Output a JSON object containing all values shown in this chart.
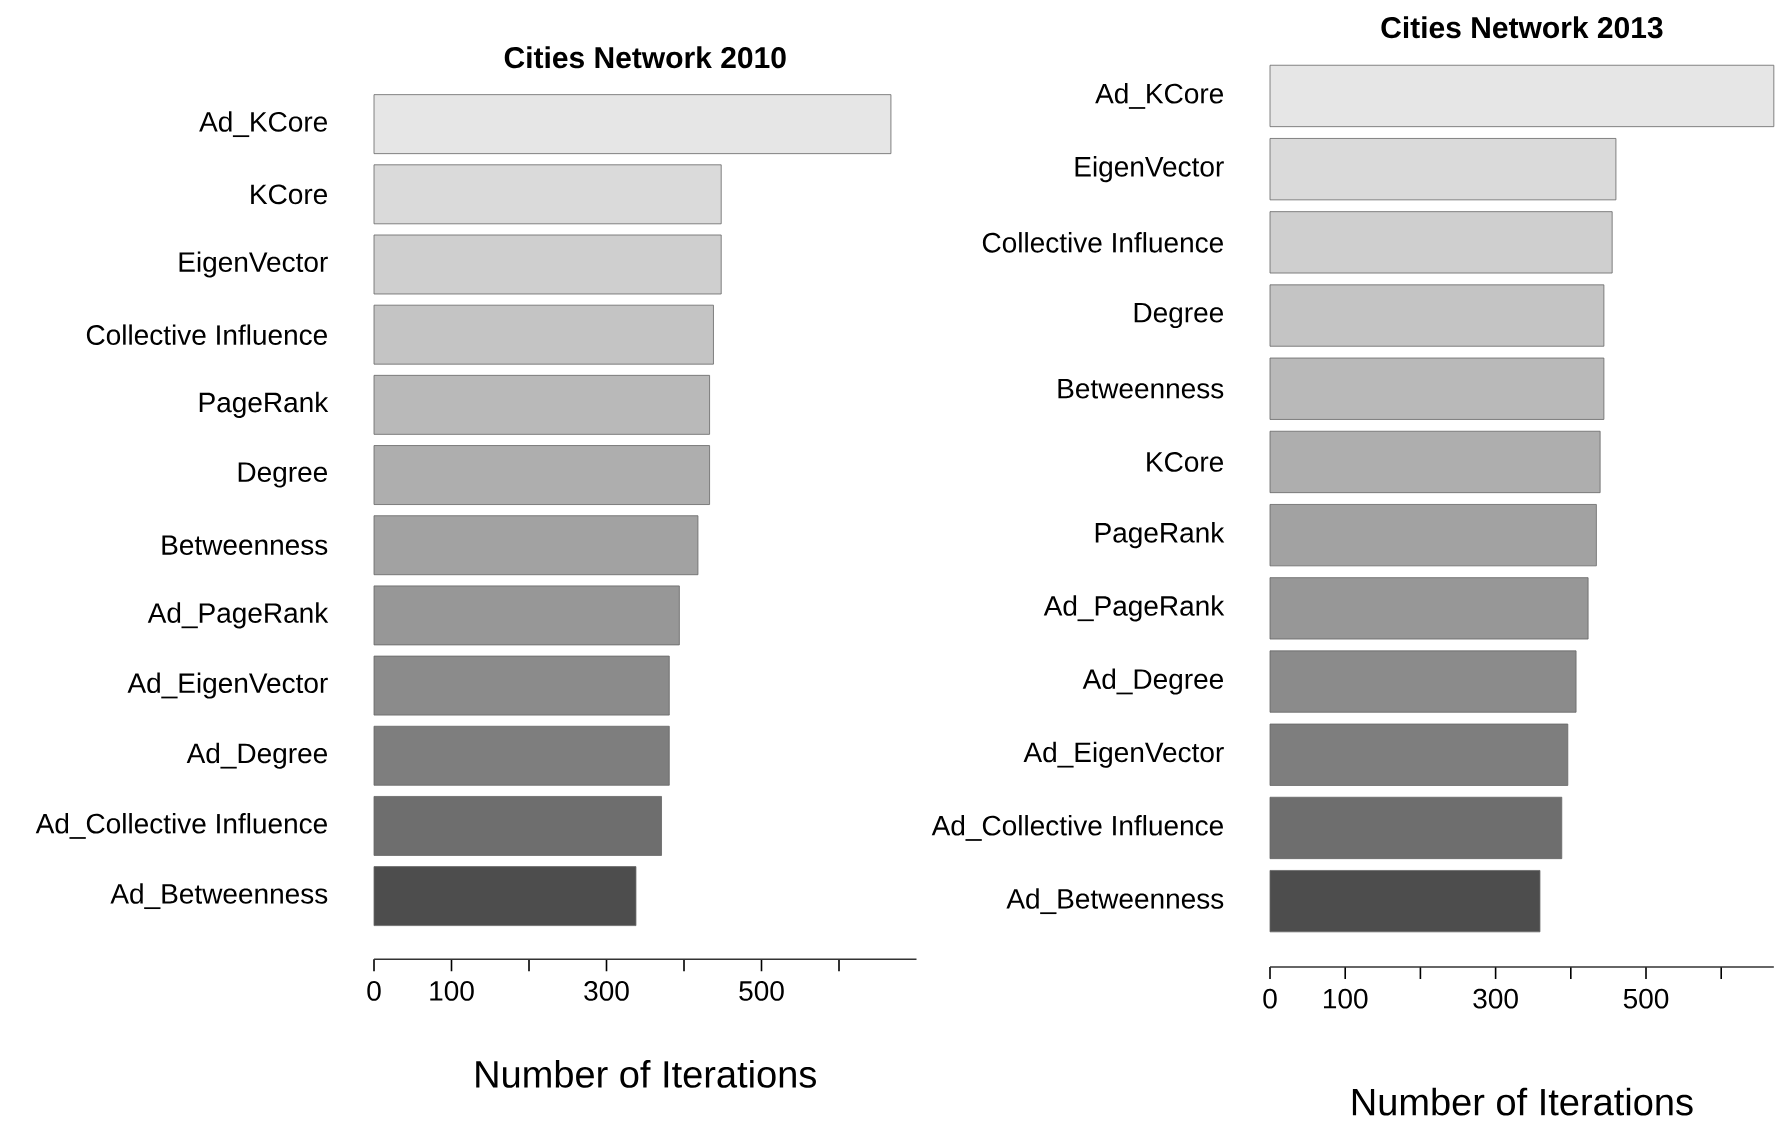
{
  "chart_data": [
    {
      "type": "bar",
      "orientation": "horizontal",
      "title": "Cities Network 2010",
      "xlabel": "Number of Iterations",
      "categories": [
        "Ad_KCore",
        "KCore",
        "EigenVector",
        "Collective Influence",
        "PageRank",
        "Degree",
        "Betweenness",
        "Ad_PageRank",
        "Ad_EigenVector",
        "Ad_Degree",
        "Ad_Collective Influence",
        "Ad_Betweenness"
      ],
      "values": [
        667,
        448,
        448,
        438,
        433,
        433,
        418,
        394,
        381,
        381,
        371,
        338
      ],
      "colors": [
        "#e6e6e6",
        "#dadada",
        "#cfcfcf",
        "#c4c4c4",
        "#b9b9b9",
        "#aeaeae",
        "#a2a2a2",
        "#979797",
        "#8b8b8b",
        "#7e7e7e",
        "#6e6e6e",
        "#4d4d4d"
      ],
      "xlim": [
        0,
        700
      ],
      "xticks": [
        0,
        100,
        {
          "value": 200,
          "label": null
        },
        300,
        {
          "value": 400,
          "label": null
        },
        500,
        {
          "value": 600,
          "label": null
        }
      ]
    },
    {
      "type": "bar",
      "orientation": "horizontal",
      "title": "Cities Network 2013",
      "xlabel": "Number of Iterations",
      "categories": [
        "Ad_KCore",
        "EigenVector",
        "Collective Influence",
        "Degree",
        "Betweenness",
        "KCore",
        "PageRank",
        "Ad_PageRank",
        "Ad_Degree",
        "Ad_EigenVector",
        "Ad_Collective Influence",
        "Ad_Betweenness"
      ],
      "values": [
        670,
        460,
        455,
        444,
        444,
        439,
        434,
        423,
        407,
        396,
        388,
        359
      ],
      "colors": [
        "#e6e6e6",
        "#dadada",
        "#cfcfcf",
        "#c4c4c4",
        "#b9b9b9",
        "#aeaeae",
        "#a2a2a2",
        "#979797",
        "#8b8b8b",
        "#7e7e7e",
        "#6e6e6e",
        "#4d4d4d"
      ],
      "xlim": [
        0,
        670
      ],
      "xticks": [
        0,
        100,
        {
          "value": 200,
          "label": null
        },
        300,
        {
          "value": 400,
          "label": null
        },
        500,
        {
          "value": 600,
          "label": null
        }
      ]
    }
  ]
}
